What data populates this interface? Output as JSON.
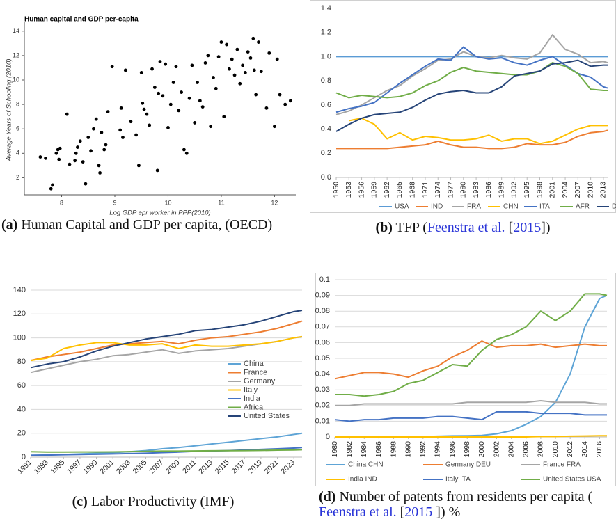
{
  "chart_data": [
    {
      "type": "scatter",
      "caption_label": "(a)",
      "caption": [
        "Human Capital and GDP per capita, (OECD)"
      ],
      "title": "Human capital and GDP per-capita",
      "xlabel": "Log GDP epr worker in PPP(2010)",
      "ylabel": "Average Years of Schooling (2010)",
      "color": "#000000",
      "grid": false,
      "xlim": [
        7.3,
        12.4
      ],
      "xticks": [
        8,
        9,
        10,
        11,
        12
      ],
      "ylim": [
        0.6,
        14.5
      ],
      "yticks": [
        2,
        4,
        6,
        8,
        10,
        12,
        14
      ],
      "x": [
        7.6,
        7.7,
        7.8,
        7.83,
        7.9,
        7.93,
        7.95,
        7.97,
        8.1,
        8.15,
        8.25,
        8.27,
        8.3,
        8.35,
        8.4,
        8.45,
        8.5,
        8.55,
        8.6,
        8.65,
        8.7,
        8.72,
        8.75,
        8.8,
        8.83,
        8.87,
        8.95,
        9.1,
        9.12,
        9.15,
        9.2,
        9.3,
        9.4,
        9.45,
        9.5,
        9.52,
        9.55,
        9.6,
        9.65,
        9.7,
        9.75,
        9.8,
        9.82,
        9.85,
        9.9,
        9.95,
        10.0,
        10.05,
        10.1,
        10.15,
        10.2,
        10.25,
        10.3,
        10.35,
        10.4,
        10.45,
        10.5,
        10.55,
        10.6,
        10.65,
        10.7,
        10.75,
        10.8,
        10.85,
        10.9,
        10.95,
        11.0,
        11.05,
        11.1,
        11.15,
        11.2,
        11.25,
        11.3,
        11.35,
        11.4,
        11.45,
        11.5,
        11.55,
        11.6,
        11.62,
        11.65,
        11.7,
        11.75,
        11.85,
        11.9,
        12.0,
        12.05,
        12.1,
        12.2,
        12.3
      ],
      "values": [
        3.7,
        3.6,
        1.1,
        1.4,
        4.0,
        4.3,
        3.5,
        4.4,
        7.2,
        3.1,
        3.4,
        4.0,
        4.5,
        5.0,
        3.3,
        1.5,
        5.3,
        4.2,
        6.0,
        6.8,
        3.0,
        2.4,
        5.7,
        4.3,
        4.7,
        7.4,
        11.1,
        5.9,
        7.7,
        5.3,
        10.8,
        6.6,
        5.5,
        3.0,
        10.6,
        8.1,
        7.6,
        7.2,
        6.3,
        10.9,
        9.4,
        2.6,
        8.9,
        11.5,
        8.7,
        11.3,
        6.1,
        8.0,
        9.8,
        11.1,
        7.5,
        9.0,
        4.3,
        4.0,
        8.5,
        11.2,
        6.5,
        9.8,
        8.3,
        7.8,
        11.4,
        12.0,
        6.2,
        10.2,
        9.3,
        11.9,
        13.1,
        7.0,
        12.9,
        10.9,
        11.7,
        10.4,
        12.5,
        9.7,
        11.2,
        10.6,
        12.3,
        11.8,
        13.4,
        10.8,
        8.8,
        13.1,
        10.7,
        7.7,
        12.2,
        6.2,
        11.7,
        8.8,
        8.0,
        8.3
      ]
    },
    {
      "type": "line",
      "caption_label": "(b)",
      "caption": [
        "TFP (",
        "Feenstra et al.",
        " [",
        "2015",
        "])"
      ],
      "grid": false,
      "legend": "bottom",
      "xlim": [
        1950,
        2014
      ],
      "xticks": [
        1950,
        1953,
        1956,
        1959,
        1962,
        1965,
        1968,
        1971,
        1974,
        1977,
        1980,
        1983,
        1986,
        1989,
        1992,
        1995,
        1998,
        2001,
        2004,
        2007,
        2010,
        2013
      ],
      "ylim": [
        0,
        1.4
      ],
      "yticks": [
        {
          "value": 0,
          "label": "0.0"
        },
        0.2,
        0.4,
        0.6,
        0.8,
        {
          "value": 1,
          "label": "1.0"
        },
        1.2,
        1.4
      ],
      "x": [
        1950,
        1953,
        1956,
        1959,
        1962,
        1965,
        1968,
        1971,
        1974,
        1977,
        1980,
        1983,
        1986,
        1989,
        1992,
        1995,
        1998,
        2001,
        2004,
        2007,
        2010,
        2013,
        2014
      ],
      "series": [
        {
          "name": "USA",
          "color": "#5b9bd5",
          "values": [
            1,
            1,
            1,
            1,
            1,
            1,
            1,
            1,
            1,
            1,
            1,
            1,
            1,
            1,
            1,
            1,
            1,
            1,
            1,
            1,
            1,
            1,
            1
          ]
        },
        {
          "name": "IND",
          "color": "#ed7d31",
          "values": [
            0.24,
            0.24,
            0.24,
            0.24,
            0.24,
            0.25,
            0.26,
            0.27,
            0.3,
            0.27,
            0.25,
            0.25,
            0.24,
            0.24,
            0.25,
            0.28,
            0.27,
            0.27,
            0.29,
            0.34,
            0.37,
            0.38,
            0.39
          ]
        },
        {
          "name": "FRA",
          "color": "#a5a5a5",
          "values": [
            0.52,
            0.55,
            0.6,
            0.66,
            0.72,
            0.76,
            0.84,
            0.9,
            0.97,
            0.98,
            1.04,
            1.0,
            0.99,
            1.01,
            0.99,
            0.98,
            1.03,
            1.18,
            1.06,
            1.02,
            0.95,
            0.96,
            0.95
          ]
        },
        {
          "name": "CHN",
          "color": "#ffc000",
          "values": [
            null,
            0.47,
            0.49,
            0.44,
            0.32,
            0.37,
            0.31,
            0.34,
            0.33,
            0.31,
            0.31,
            0.32,
            0.35,
            0.3,
            0.32,
            0.32,
            0.28,
            0.3,
            0.35,
            0.4,
            0.43,
            0.43,
            0.43
          ]
        },
        {
          "name": "ITA",
          "color": "#4472c4",
          "values": [
            0.54,
            0.57,
            0.59,
            0.62,
            0.7,
            0.78,
            0.85,
            0.92,
            0.98,
            0.97,
            1.08,
            1.0,
            0.98,
            0.99,
            0.95,
            0.93,
            0.97,
            1.0,
            0.93,
            0.86,
            0.83,
            0.75,
            0.74
          ]
        },
        {
          "name": "AFR",
          "color": "#70ad47",
          "values": [
            0.7,
            0.66,
            0.68,
            0.67,
            0.66,
            0.67,
            0.7,
            0.76,
            0.8,
            0.87,
            0.91,
            0.88,
            0.87,
            0.86,
            0.85,
            0.85,
            0.88,
            0.95,
            0.92,
            0.86,
            0.73,
            0.72,
            0.72
          ]
        },
        {
          "name": "DEU",
          "color": "#264478",
          "values": [
            0.38,
            0.44,
            0.49,
            0.52,
            0.53,
            0.54,
            0.58,
            0.64,
            0.69,
            0.71,
            0.72,
            0.7,
            0.7,
            0.75,
            0.84,
            0.86,
            0.88,
            0.94,
            0.95,
            0.97,
            0.92,
            0.93,
            0.93
          ]
        }
      ]
    },
    {
      "type": "line",
      "caption_label": "(c)",
      "caption": [
        "Labor Productivity (IMF)"
      ],
      "grid": true,
      "legend": "right",
      "xlim": [
        1991,
        2024
      ],
      "xticks": [
        1991,
        1993,
        1995,
        1997,
        1999,
        2001,
        2003,
        2005,
        2007,
        2009,
        2011,
        2013,
        2015,
        2017,
        2019,
        2021,
        2023
      ],
      "ylim": [
        0,
        140
      ],
      "yticks": [
        0,
        20,
        40,
        60,
        80,
        100,
        120,
        140
      ],
      "x": [
        1991,
        1993,
        1995,
        1997,
        1999,
        2001,
        2003,
        2005,
        2007,
        2009,
        2011,
        2013,
        2015,
        2017,
        2019,
        2021,
        2023,
        2024
      ],
      "series": [
        {
          "name": "China",
          "color": "#5ea4d6",
          "values": [
            1.5,
            1.8,
            2.2,
            2.7,
            3.2,
            3.8,
            4.5,
            5.5,
            7,
            8,
            9.5,
            11,
            12.5,
            14,
            15.5,
            17,
            19,
            20
          ]
        },
        {
          "name": "France",
          "color": "#ed7d31",
          "values": [
            81,
            84,
            86,
            88,
            91,
            94,
            95,
            96,
            97,
            95,
            98,
            100,
            101,
            103,
            105,
            108,
            112,
            114
          ]
        },
        {
          "name": "Germany",
          "color": "#a5a5a5",
          "values": [
            71,
            74,
            77,
            80,
            82,
            85,
            86,
            88,
            90,
            87,
            89,
            90,
            91,
            93,
            95,
            97,
            100,
            101
          ]
        },
        {
          "name": "Italy",
          "color": "#ffc000",
          "values": [
            81,
            83,
            91,
            94,
            96,
            96,
            94,
            94,
            95,
            91,
            94,
            93,
            93,
            94,
            95,
            97,
            100,
            101
          ]
        },
        {
          "name": "India",
          "color": "#4472c4",
          "values": [
            1.5,
            1.7,
            2,
            2.2,
            2.4,
            2.7,
            3,
            3.3,
            3.8,
            4.2,
            4.8,
            5.2,
            5.5,
            6,
            6.5,
            7,
            7.6,
            8
          ]
        },
        {
          "name": "Africa",
          "color": "#70ad47",
          "values": [
            4.5,
            4.2,
            4.2,
            4.3,
            4.3,
            4.4,
            4.6,
            4.8,
            5,
            5,
            5.2,
            5.3,
            5.4,
            5.5,
            5.6,
            5.8,
            6,
            6.2
          ]
        },
        {
          "name": "United States",
          "color": "#264478",
          "values": [
            75,
            78,
            80,
            84,
            89,
            93,
            96,
            99,
            101,
            103,
            106,
            107,
            109,
            111,
            114,
            118,
            122,
            123
          ]
        }
      ]
    },
    {
      "type": "line",
      "caption_label": "(d)",
      "caption": [
        "Number of patents from residents per capita ( ",
        "Feenstra et al.",
        " [",
        "2015",
        " ]) %"
      ],
      "grid": true,
      "legend": "bottom",
      "xlim": [
        1980,
        2017
      ],
      "xticks": [
        1980,
        1982,
        1984,
        1986,
        1988,
        1990,
        1992,
        1994,
        1996,
        1998,
        2000,
        2002,
        2004,
        2006,
        2008,
        2010,
        2012,
        2014,
        2016
      ],
      "ylim": [
        0,
        0.1
      ],
      "yticks": [
        0,
        0.01,
        0.02,
        0.03,
        0.04,
        0.05,
        0.06,
        0.07,
        0.08,
        0.09,
        0.1
      ],
      "x": [
        1980,
        1982,
        1984,
        1986,
        1988,
        1990,
        1992,
        1994,
        1996,
        1998,
        2000,
        2002,
        2004,
        2006,
        2008,
        2010,
        2012,
        2014,
        2016,
        2017
      ],
      "series": [
        {
          "name": "China CHN",
          "color": "#5ea4d6",
          "values": [
            0,
            0,
            0,
            0,
            0,
            0,
            0.0003,
            0.0005,
            0.0007,
            0.0008,
            0.001,
            0.002,
            0.004,
            0.008,
            0.013,
            0.022,
            0.04,
            0.07,
            0.088,
            0.09
          ]
        },
        {
          "name": "Germany DEU",
          "color": "#ed7d31",
          "values": [
            0.037,
            0.039,
            0.041,
            0.041,
            0.04,
            0.038,
            0.042,
            0.045,
            0.051,
            0.055,
            0.061,
            0.057,
            0.058,
            0.058,
            0.059,
            0.057,
            0.058,
            0.059,
            0.058,
            0.058
          ]
        },
        {
          "name": "France FRA",
          "color": "#a5a5a5",
          "values": [
            0.02,
            0.02,
            0.021,
            0.021,
            0.021,
            0.021,
            0.021,
            0.021,
            0.021,
            0.022,
            0.022,
            0.022,
            0.022,
            0.022,
            0.023,
            0.022,
            0.022,
            0.022,
            0.021,
            0.021
          ]
        },
        {
          "name": "India IND",
          "color": "#ffc000",
          "values": [
            0,
            0,
            0,
            0,
            0,
            0,
            0,
            0,
            0,
            0,
            0,
            0,
            0,
            0,
            0.0003,
            0.0003,
            0.0005,
            0.0006,
            0.0008,
            0.0008
          ]
        },
        {
          "name": "Italy ITA",
          "color": "#4472c4",
          "values": [
            0.011,
            0.01,
            0.011,
            0.011,
            0.012,
            0.012,
            0.012,
            0.013,
            0.013,
            0.012,
            0.011,
            0.016,
            0.016,
            0.016,
            0.015,
            0.015,
            0.015,
            0.014,
            0.014,
            0.014
          ]
        },
        {
          "name": "United States USA",
          "color": "#70ad47",
          "values": [
            0.027,
            0.027,
            0.026,
            0.027,
            0.029,
            0.034,
            0.036,
            0.041,
            0.046,
            0.045,
            0.055,
            0.062,
            0.065,
            0.07,
            0.08,
            0.074,
            0.08,
            0.091,
            0.091,
            0.09
          ]
        }
      ]
    }
  ]
}
